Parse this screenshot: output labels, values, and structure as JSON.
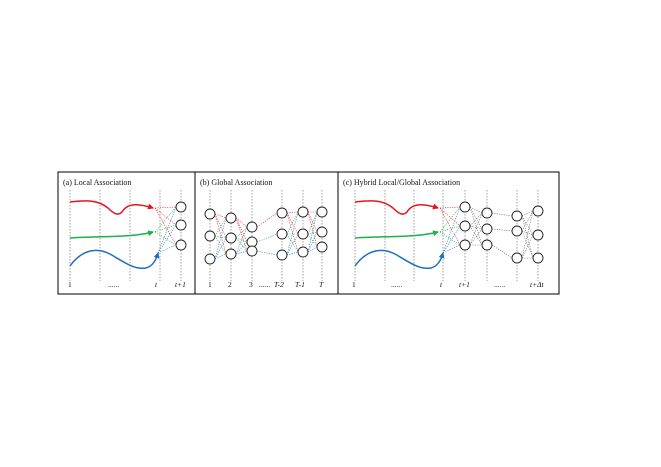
{
  "panels": [
    {
      "title": "(a)  Local Association",
      "ticks": [
        "1",
        "......",
        "t",
        "t+1"
      ]
    },
    {
      "title": "(b)  Global Association",
      "ticks": [
        "1",
        "2",
        "3",
        "......",
        "T-2",
        "T-1",
        "T"
      ]
    },
    {
      "title": "(c)  Hybrid Local/Global Association",
      "ticks": [
        "1",
        "......",
        "t",
        "t+1",
        "......",
        "t+Δt"
      ]
    }
  ],
  "colors": {
    "track_red": "#e8141b",
    "track_green": "#1bb14b",
    "track_blue": "#1e6fc0",
    "frame": "#000000",
    "node_stroke": "#222222"
  }
}
